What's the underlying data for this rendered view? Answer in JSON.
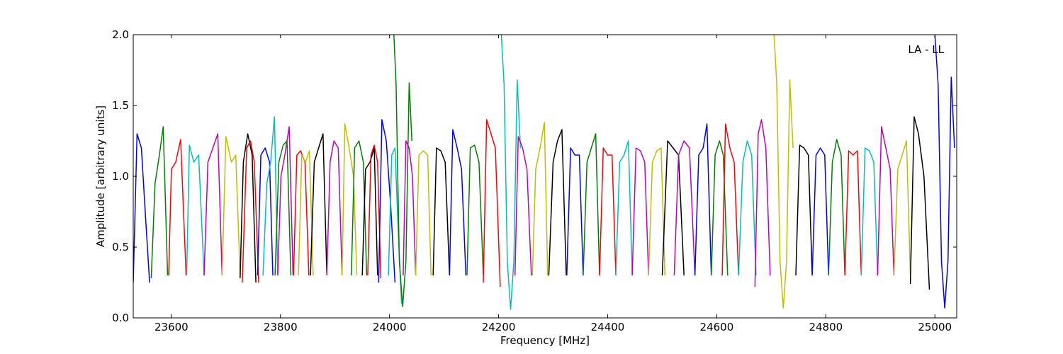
{
  "chart_data": {
    "type": "line",
    "title": "",
    "annotation": "LA - LL",
    "xlabel": "Frequency [MHz]",
    "ylabel": "Amplitude [arbitrary units]",
    "xlim": [
      23530,
      25040
    ],
    "ylim": [
      0.0,
      2.0
    ],
    "xticks": [
      23600,
      23800,
      24000,
      24200,
      24400,
      24600,
      24800,
      25000
    ],
    "yticks": [
      0.0,
      0.5,
      1.0,
      1.5,
      2.0
    ],
    "xtick_labels": [
      "23600",
      "23800",
      "24000",
      "24200",
      "24400",
      "24600",
      "24800",
      "25000"
    ],
    "ytick_labels": [
      "0.0",
      "0.5",
      "1.0",
      "1.5",
      "2.0"
    ],
    "grid": false,
    "legend": "none",
    "color_cycle": [
      "#0000ff",
      "#008000",
      "#ff0000",
      "#00bfbf",
      "#bf00bf",
      "#bfbf00",
      "#000000"
    ],
    "series": [
      {
        "color": "#0000ff",
        "x": [
          23530,
          23537,
          23545,
          23552,
          23560
        ],
        "y": [
          0.25,
          1.3,
          1.2,
          0.75,
          0.25
        ]
      },
      {
        "color": "#008000",
        "x": [
          23563,
          23570,
          23578,
          23585,
          23593
        ],
        "y": [
          0.28,
          0.95,
          1.15,
          1.35,
          0.3
        ]
      },
      {
        "color": "#ff0000",
        "x": [
          23595,
          23600,
          23608,
          23617,
          23627
        ],
        "y": [
          0.3,
          1.05,
          1.1,
          1.26,
          0.3
        ]
      },
      {
        "color": "#00bfbf",
        "x": [
          23628,
          23633,
          23641,
          23650,
          23660
        ],
        "y": [
          0.3,
          1.22,
          1.1,
          1.15,
          0.3
        ]
      },
      {
        "color": "#bf00bf",
        "x": [
          23660,
          23667,
          23676,
          23685,
          23693
        ],
        "y": [
          0.3,
          1.1,
          1.2,
          1.3,
          0.3
        ]
      },
      {
        "color": "#bfbf00",
        "x": [
          23693,
          23700,
          23710,
          23718,
          23726
        ],
        "y": [
          0.3,
          1.28,
          1.1,
          1.15,
          0.3
        ]
      },
      {
        "color": "#000000",
        "x": [
          23726,
          23732,
          23740,
          23748,
          23755
        ],
        "y": [
          0.28,
          1.1,
          1.3,
          1.15,
          0.25
        ]
      },
      {
        "color": "#ff0000",
        "x": [
          23730,
          23738,
          23745,
          23752,
          23760
        ],
        "y": [
          0.25,
          1.2,
          1.25,
          1.1,
          0.25
        ]
      },
      {
        "color": "#0000ff",
        "x": [
          23758,
          23764,
          23772,
          23780,
          23786
        ],
        "y": [
          0.3,
          1.15,
          1.2,
          1.1,
          0.3
        ]
      },
      {
        "color": "#00bfbf",
        "x": [
          23768,
          23775,
          23782,
          23789,
          23795
        ],
        "y": [
          0.3,
          0.95,
          1.1,
          1.42,
          0.3
        ]
      },
      {
        "color": "#bf00bf",
        "x": [
          23795,
          23801,
          23808,
          23816,
          23823
        ],
        "y": [
          0.3,
          1.0,
          1.15,
          1.35,
          0.3
        ]
      },
      {
        "color": "#008000",
        "x": [
          23790,
          23797,
          23805,
          23812,
          23819
        ],
        "y": [
          0.3,
          1.1,
          1.22,
          1.25,
          0.3
        ]
      },
      {
        "color": "#ff0000",
        "x": [
          23824,
          23830,
          23837,
          23845,
          23852
        ],
        "y": [
          0.3,
          1.15,
          1.18,
          1.1,
          0.3
        ]
      },
      {
        "color": "#bfbf00",
        "x": [
          23833,
          23839,
          23846,
          23853,
          23860
        ],
        "y": [
          0.3,
          1.15,
          1.1,
          1.18,
          0.3
        ]
      },
      {
        "color": "#000000",
        "x": [
          23855,
          23862,
          23870,
          23878,
          23885
        ],
        "y": [
          0.3,
          1.1,
          1.2,
          1.3,
          0.3
        ]
      },
      {
        "color": "#bf00bf",
        "x": [
          23885,
          23891,
          23898,
          23906,
          23913
        ],
        "y": [
          0.3,
          1.1,
          1.25,
          1.2,
          0.3
        ]
      },
      {
        "color": "#bfbf00",
        "x": [
          23913,
          23918,
          23926,
          23934,
          23940
        ],
        "y": [
          0.3,
          1.37,
          1.2,
          1.0,
          0.3
        ]
      },
      {
        "color": "#008000",
        "x": [
          23930,
          23936,
          23944,
          23952,
          23958
        ],
        "y": [
          0.3,
          1.2,
          1.25,
          1.1,
          0.3
        ]
      },
      {
        "color": "#000000",
        "x": [
          23950,
          23956,
          23964,
          23972,
          23978
        ],
        "y": [
          0.3,
          1.05,
          1.1,
          1.2,
          0.3
        ]
      },
      {
        "color": "#ff0000",
        "x": [
          23960,
          23966,
          23972,
          23978,
          23984
        ],
        "y": [
          0.3,
          1.15,
          1.22,
          1.1,
          0.28
        ]
      },
      {
        "color": "#0000ff",
        "x": [
          23980,
          23986,
          23994,
          24002,
          24010
        ],
        "y": [
          0.25,
          1.4,
          1.25,
          0.8,
          0.25
        ]
      },
      {
        "color": "#00bfbf",
        "x": [
          23998,
          24004,
          24010,
          24016,
          24022
        ],
        "y": [
          0.3,
          1.15,
          1.2,
          0.6,
          0.1
        ]
      },
      {
        "color": "#008000",
        "x": [
          24008,
          24012,
          24018,
          24024,
          24030,
          24036,
          24041
        ],
        "y": [
          2.0,
          1.65,
          0.4,
          0.08,
          0.4,
          1.66,
          1.25
        ]
      },
      {
        "color": "#bf00bf",
        "x": [
          24025,
          24030,
          24036,
          24042,
          24048
        ],
        "y": [
          0.3,
          1.25,
          1.2,
          1.0,
          0.3
        ]
      },
      {
        "color": "#bfbf00",
        "x": [
          24048,
          24054,
          24062,
          24070,
          24076
        ],
        "y": [
          0.3,
          1.15,
          1.18,
          1.15,
          0.3
        ]
      },
      {
        "color": "#000000",
        "x": [
          24080,
          24086,
          24094,
          24102,
          24110
        ],
        "y": [
          0.3,
          1.2,
          1.18,
          1.1,
          0.3
        ]
      },
      {
        "color": "#0000ff",
        "x": [
          24110,
          24116,
          24124,
          24132,
          24140
        ],
        "y": [
          0.3,
          1.33,
          1.2,
          1.05,
          0.3
        ]
      },
      {
        "color": "#008000",
        "x": [
          24142,
          24148,
          24156,
          24164,
          24172
        ],
        "y": [
          0.3,
          1.2,
          1.22,
          1.1,
          0.3
        ]
      },
      {
        "color": "#ff0000",
        "x": [
          24172,
          24178,
          24186,
          24194,
          24203
        ],
        "y": [
          0.25,
          1.4,
          1.3,
          1.2,
          0.22
        ]
      },
      {
        "color": "#00bfbf",
        "x": [
          24205,
          24210,
          24216,
          24222,
          24228,
          24234,
          24240
        ],
        "y": [
          2.0,
          1.65,
          0.4,
          0.06,
          0.4,
          1.68,
          1.2
        ]
      },
      {
        "color": "#bf00bf",
        "x": [
          24230,
          24236,
          24244,
          24252,
          24260
        ],
        "y": [
          0.3,
          1.28,
          1.2,
          1.05,
          0.3
        ]
      },
      {
        "color": "#bfbf00",
        "x": [
          24262,
          24268,
          24276,
          24284,
          24290
        ],
        "y": [
          0.3,
          1.05,
          1.2,
          1.38,
          0.3
        ]
      },
      {
        "color": "#000000",
        "x": [
          24292,
          24300,
          24308,
          24316,
          24324
        ],
        "y": [
          0.3,
          1.1,
          1.25,
          1.33,
          0.3
        ]
      },
      {
        "color": "#0000ff",
        "x": [
          24325,
          24332,
          24340,
          24348,
          24355
        ],
        "y": [
          0.3,
          1.2,
          1.15,
          1.15,
          0.3
        ]
      },
      {
        "color": "#008000",
        "x": [
          24355,
          24362,
          24370,
          24378,
          24385
        ],
        "y": [
          0.3,
          1.1,
          1.2,
          1.3,
          0.3
        ]
      },
      {
        "color": "#ff0000",
        "x": [
          24385,
          24392,
          24400,
          24408,
          24415
        ],
        "y": [
          0.3,
          1.2,
          1.15,
          1.15,
          0.3
        ]
      },
      {
        "color": "#00bfbf",
        "x": [
          24415,
          24422,
          24430,
          24438,
          24445
        ],
        "y": [
          0.3,
          1.1,
          1.15,
          1.25,
          0.3
        ]
      },
      {
        "color": "#bf00bf",
        "x": [
          24445,
          24452,
          24460,
          24468,
          24475
        ],
        "y": [
          0.3,
          1.2,
          1.18,
          1.1,
          0.3
        ]
      },
      {
        "color": "#bfbf00",
        "x": [
          24475,
          24482,
          24490,
          24498,
          24505
        ],
        "y": [
          0.3,
          1.1,
          1.18,
          1.2,
          0.3
        ]
      },
      {
        "color": "#000000",
        "x": [
          24500,
          24510,
          24520,
          24530,
          24540
        ],
        "y": [
          0.3,
          1.25,
          1.2,
          1.15,
          0.3
        ]
      },
      {
        "color": "#bf00bf",
        "x": [
          24522,
          24530,
          24540,
          24550,
          24560
        ],
        "y": [
          0.3,
          1.15,
          1.25,
          1.2,
          0.3
        ]
      },
      {
        "color": "#0000ff",
        "x": [
          24560,
          24567,
          24575,
          24582,
          24590
        ],
        "y": [
          0.3,
          1.15,
          1.2,
          1.37,
          0.3
        ]
      },
      {
        "color": "#008000",
        "x": [
          24590,
          24597,
          24605,
          24612,
          24620
        ],
        "y": [
          0.3,
          1.15,
          1.25,
          1.15,
          0.3
        ]
      },
      {
        "color": "#ff0000",
        "x": [
          24610,
          24616,
          24624,
          24632,
          24640
        ],
        "y": [
          0.3,
          1.37,
          1.2,
          1.1,
          0.3
        ]
      },
      {
        "color": "#00bfbf",
        "x": [
          24640,
          24648,
          24656,
          24664,
          24672
        ],
        "y": [
          0.3,
          1.1,
          1.25,
          1.15,
          0.3
        ]
      },
      {
        "color": "#bf00bf",
        "x": [
          24670,
          24676,
          24682,
          24690,
          24698
        ],
        "y": [
          0.22,
          1.3,
          1.4,
          1.2,
          0.3
        ]
      },
      {
        "color": "#bfbf00",
        "x": [
          24705,
          24710,
          24716,
          24722,
          24728,
          24734,
          24740
        ],
        "y": [
          2.0,
          1.65,
          0.4,
          0.07,
          0.4,
          1.68,
          1.2
        ]
      },
      {
        "color": "#000000",
        "x": [
          24745,
          24752,
          24760,
          24768,
          24775
        ],
        "y": [
          0.3,
          1.22,
          1.2,
          1.15,
          0.3
        ]
      },
      {
        "color": "#0000ff",
        "x": [
          24775,
          24782,
          24790,
          24798,
          24805
        ],
        "y": [
          0.3,
          1.15,
          1.2,
          1.15,
          0.3
        ]
      },
      {
        "color": "#008000",
        "x": [
          24805,
          24812,
          24820,
          24828,
          24835
        ],
        "y": [
          0.3,
          1.1,
          1.26,
          1.15,
          0.3
        ]
      },
      {
        "color": "#ff0000",
        "x": [
          24835,
          24842,
          24850,
          24858,
          24865
        ],
        "y": [
          0.3,
          1.18,
          1.15,
          1.18,
          0.3
        ]
      },
      {
        "color": "#00bfbf",
        "x": [
          24865,
          24872,
          24880,
          24888,
          24895
        ],
        "y": [
          0.3,
          1.2,
          1.18,
          1.1,
          0.3
        ]
      },
      {
        "color": "#bf00bf",
        "x": [
          24895,
          24902,
          24910,
          24918,
          24925
        ],
        "y": [
          0.3,
          1.35,
          1.2,
          1.05,
          0.3
        ]
      },
      {
        "color": "#bfbf00",
        "x": [
          24925,
          24932,
          24940,
          24948,
          24955
        ],
        "y": [
          0.3,
          1.05,
          1.15,
          1.25,
          0.3
        ]
      },
      {
        "color": "#000000",
        "x": [
          24955,
          24962,
          24970,
          24980,
          24990
        ],
        "y": [
          0.24,
          1.42,
          1.3,
          1.0,
          0.2
        ]
      },
      {
        "color": "#0000ff",
        "x": [
          25000,
          25006,
          25012,
          25018,
          25024,
          25030,
          25036
        ],
        "y": [
          2.0,
          1.65,
          0.4,
          0.07,
          0.4,
          1.7,
          1.2
        ]
      }
    ]
  }
}
